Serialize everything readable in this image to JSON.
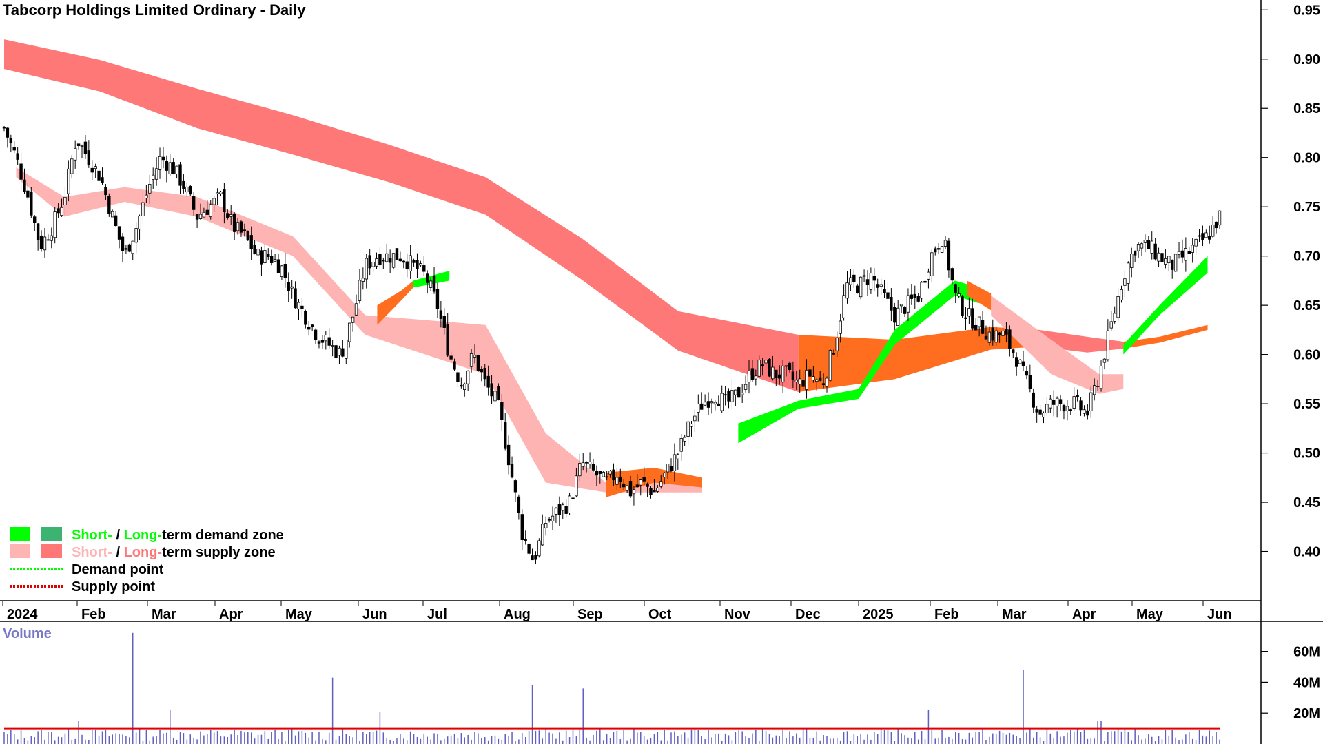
{
  "chart_data": {
    "type": "candlestick",
    "title": "Tabcorp Holdings Limited Ordinary - Daily",
    "y_axis": {
      "ticks": [
        0.95,
        0.9,
        0.85,
        0.8,
        0.75,
        0.7,
        0.65,
        0.6,
        0.55,
        0.5,
        0.45,
        0.4
      ],
      "range": [
        0.35,
        0.96
      ]
    },
    "x_axis": {
      "labels": [
        "2024",
        "Feb",
        "Mar",
        "Apr",
        "May",
        "Jun",
        "Jul",
        "Aug",
        "Sep",
        "Oct",
        "Nov",
        "Dec",
        "2025",
        "Feb",
        "Mar",
        "Apr",
        "May",
        "Jun"
      ]
    },
    "close_path": [
      [
        0,
        0.83
      ],
      [
        0.5,
        0.8
      ],
      [
        1,
        0.76
      ],
      [
        1.5,
        0.71
      ],
      [
        2,
        0.73
      ],
      [
        2.5,
        0.76
      ],
      [
        3,
        0.82
      ],
      [
        3.5,
        0.8
      ],
      [
        4,
        0.78
      ],
      [
        4.5,
        0.74
      ],
      [
        5,
        0.7
      ],
      [
        5.5,
        0.73
      ],
      [
        6,
        0.77
      ],
      [
        6.5,
        0.8
      ],
      [
        7,
        0.79
      ],
      [
        7.5,
        0.77
      ],
      [
        8,
        0.74
      ],
      [
        8.5,
        0.75
      ],
      [
        9,
        0.76
      ],
      [
        9.5,
        0.73
      ],
      [
        10,
        0.72
      ],
      [
        10.5,
        0.7
      ],
      [
        11,
        0.7
      ],
      [
        11.5,
        0.69
      ],
      [
        12,
        0.66
      ],
      [
        12.5,
        0.64
      ],
      [
        13,
        0.62
      ],
      [
        13.5,
        0.61
      ],
      [
        14,
        0.6
      ],
      [
        14.5,
        0.64
      ],
      [
        15,
        0.69
      ],
      [
        15.5,
        0.7
      ],
      [
        16,
        0.7
      ],
      [
        16.5,
        0.7
      ],
      [
        17,
        0.69
      ],
      [
        17.5,
        0.68
      ],
      [
        18,
        0.65
      ],
      [
        18.5,
        0.6
      ],
      [
        19,
        0.57
      ],
      [
        19.5,
        0.6
      ],
      [
        20,
        0.57
      ],
      [
        20.5,
        0.55
      ],
      [
        21,
        0.49
      ],
      [
        21.5,
        0.42
      ],
      [
        22,
        0.39
      ],
      [
        22.5,
        0.43
      ],
      [
        23,
        0.44
      ],
      [
        23.5,
        0.45
      ],
      [
        24,
        0.49
      ],
      [
        24.5,
        0.48
      ],
      [
        25,
        0.47
      ],
      [
        25.5,
        0.48
      ],
      [
        26,
        0.46
      ],
      [
        26.5,
        0.47
      ],
      [
        27,
        0.46
      ],
      [
        27.5,
        0.48
      ],
      [
        28,
        0.5
      ],
      [
        28.5,
        0.53
      ],
      [
        29,
        0.55
      ],
      [
        29.5,
        0.56
      ],
      [
        30,
        0.55
      ],
      [
        30.5,
        0.56
      ],
      [
        31,
        0.58
      ],
      [
        31.5,
        0.59
      ],
      [
        32,
        0.58
      ],
      [
        32.5,
        0.58
      ],
      [
        33,
        0.57
      ],
      [
        33.5,
        0.58
      ],
      [
        34,
        0.57
      ],
      [
        34.5,
        0.61
      ],
      [
        35,
        0.67
      ],
      [
        35.5,
        0.67
      ],
      [
        36,
        0.68
      ],
      [
        36.5,
        0.66
      ],
      [
        37,
        0.64
      ],
      [
        37.5,
        0.65
      ],
      [
        38,
        0.66
      ],
      [
        38.5,
        0.7
      ],
      [
        39,
        0.72
      ],
      [
        39.5,
        0.66
      ],
      [
        40,
        0.64
      ],
      [
        40.5,
        0.63
      ],
      [
        41,
        0.62
      ],
      [
        41.5,
        0.62
      ],
      [
        42,
        0.6
      ],
      [
        42.5,
        0.57
      ],
      [
        43,
        0.54
      ],
      [
        43.5,
        0.55
      ],
      [
        44,
        0.55
      ],
      [
        44.5,
        0.55
      ],
      [
        45,
        0.54
      ],
      [
        45.5,
        0.58
      ],
      [
        46,
        0.63
      ],
      [
        46.5,
        0.68
      ],
      [
        47,
        0.71
      ],
      [
        47.5,
        0.71
      ],
      [
        48,
        0.7
      ],
      [
        48.5,
        0.69
      ],
      [
        49,
        0.7
      ],
      [
        49.5,
        0.71
      ],
      [
        50,
        0.72
      ],
      [
        50.5,
        0.74
      ]
    ],
    "bands": [
      {
        "name": "long-term-supply",
        "color": "#fe7878",
        "points": [
          [
            0,
            0.92,
            0.89
          ],
          [
            4,
            0.899,
            0.867
          ],
          [
            8,
            0.87,
            0.83
          ],
          [
            12,
            0.843,
            0.803
          ],
          [
            16,
            0.813,
            0.775
          ],
          [
            20,
            0.78,
            0.742
          ],
          [
            24,
            0.718,
            0.676
          ],
          [
            28,
            0.644,
            0.604
          ],
          [
            33,
            0.62,
            0.562
          ]
        ]
      },
      {
        "name": "long-term-orange",
        "color": "#fe6e1e",
        "points": [
          [
            33,
            0.62,
            0.562
          ],
          [
            37,
            0.615,
            0.575
          ],
          [
            41,
            0.628,
            0.605
          ],
          [
            43,
            0.625,
            0.608
          ]
        ]
      },
      {
        "name": "long-term-supply-2",
        "color": "#fe7878",
        "points": [
          [
            43,
            0.625,
            0.608
          ],
          [
            45,
            0.618,
            0.602
          ],
          [
            46.5,
            0.613,
            0.606
          ]
        ]
      },
      {
        "name": "long-term-orange-2",
        "color": "#fe6e1e",
        "points": [
          [
            46.5,
            0.613,
            0.606
          ],
          [
            48,
            0.618,
            0.612
          ],
          [
            50,
            0.63,
            0.625
          ]
        ]
      },
      {
        "name": "short-term-demand",
        "color": "#00ff00",
        "points": [
          [
            30.5,
            0.53,
            0.51
          ],
          [
            33,
            0.553,
            0.545
          ],
          [
            35.5,
            0.565,
            0.555
          ],
          [
            37,
            0.625,
            0.61
          ],
          [
            39.5,
            0.675,
            0.66
          ],
          [
            40.5,
            0.668,
            0.652
          ]
        ]
      },
      {
        "name": "short-term-demand-2",
        "color": "#00ff00",
        "points": [
          [
            46.5,
            0.61,
            0.6
          ],
          [
            48,
            0.65,
            0.64
          ],
          [
            50,
            0.7,
            0.683
          ]
        ]
      },
      {
        "name": "short-term-supply",
        "color": "#ffb4b4",
        "points": [
          [
            0.5,
            0.79,
            0.78
          ],
          [
            2.5,
            0.76,
            0.74
          ],
          [
            5,
            0.77,
            0.755
          ],
          [
            8,
            0.76,
            0.74
          ],
          [
            12,
            0.72,
            0.7
          ],
          [
            15,
            0.64,
            0.62
          ],
          [
            20,
            0.63,
            0.58
          ],
          [
            22.5,
            0.52,
            0.47
          ],
          [
            25,
            0.47,
            0.46
          ],
          [
            29,
            0.47,
            0.46
          ]
        ]
      },
      {
        "name": "short-term-supply-2",
        "color": "#ffb4b4",
        "points": [
          [
            41,
            0.66,
            0.64
          ],
          [
            43.5,
            0.615,
            0.58
          ],
          [
            45.5,
            0.58,
            0.56
          ],
          [
            46.5,
            0.58,
            0.565
          ]
        ]
      },
      {
        "name": "short-term-orange",
        "color": "#fe6e1e",
        "points": [
          [
            15.5,
            0.65,
            0.63
          ],
          [
            16.5,
            0.665,
            0.655
          ],
          [
            17,
            0.675,
            0.668
          ]
        ]
      },
      {
        "name": "short-term-green-mid",
        "color": "#00ff00",
        "points": [
          [
            17,
            0.675,
            0.668
          ],
          [
            18.5,
            0.685,
            0.675
          ]
        ]
      },
      {
        "name": "short-term-orange-oct",
        "color": "#fe6e1e",
        "points": [
          [
            25,
            0.48,
            0.455
          ],
          [
            27,
            0.485,
            0.47
          ],
          [
            29,
            0.475,
            0.465
          ]
        ]
      },
      {
        "name": "short-term-orange-mar",
        "color": "#fe6e1e",
        "points": [
          [
            40,
            0.675,
            0.66
          ],
          [
            41,
            0.662,
            0.645
          ]
        ]
      }
    ],
    "volume": {
      "title": "Volume",
      "ticks": [
        "60M",
        "40M",
        "20M"
      ],
      "range": [
        0,
        75
      ],
      "spikes": [
        [
          5.4,
          72
        ],
        [
          13.6,
          43
        ],
        [
          22,
          38
        ],
        [
          24,
          36
        ],
        [
          42.3,
          48
        ],
        [
          38.4,
          22
        ],
        [
          6.9,
          22
        ],
        [
          15.6,
          21
        ],
        [
          3.1,
          15
        ],
        [
          45.5,
          15
        ]
      ]
    },
    "legend": [
      {
        "label_parts": [
          "Short-",
          " / ",
          "Long-",
          "term demand zone"
        ],
        "colors": [
          "#00ff00",
          "#000000",
          "#00ff00",
          "#000000"
        ],
        "swatches": [
          "#00ff00",
          "#3cb371"
        ]
      },
      {
        "label_parts": [
          "Short-",
          " / ",
          "Long-",
          "term supply zone"
        ],
        "colors": [
          "#ffb4b4",
          "#000000",
          "#fe7878",
          "#000000"
        ],
        "swatches": [
          "#ffb4b4",
          "#fe7878"
        ]
      },
      {
        "label_parts": [
          "Demand point"
        ],
        "colors": [
          "#000000"
        ],
        "line": "#00ff00"
      },
      {
        "label_parts": [
          "Supply point"
        ],
        "colors": [
          "#000000"
        ],
        "line": "#e00000"
      }
    ]
  }
}
